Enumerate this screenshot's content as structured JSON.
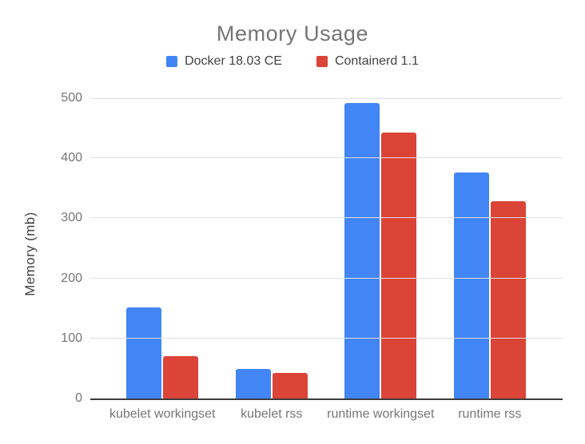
{
  "chart_data": {
    "type": "bar",
    "title": "Memory Usage",
    "ylabel": "Memory (mb)",
    "xlabel": "",
    "categories": [
      "kubelet workingset",
      "kubelet rss",
      "runtime workingset",
      "runtime rss"
    ],
    "series": [
      {
        "name": "Docker 18.03 CE",
        "color": "#4285f4",
        "values": [
          152,
          49,
          492,
          377
        ]
      },
      {
        "name": "Containerd 1.1",
        "color": "#db4437",
        "values": [
          71,
          42,
          443,
          328
        ]
      }
    ],
    "ylim": [
      0,
      500
    ],
    "ytick_step": 100,
    "grid": true,
    "legend_position": "top"
  }
}
